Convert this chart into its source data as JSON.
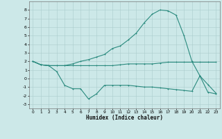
{
  "xlabel": "Humidex (Indice chaleur)",
  "ylabel": "",
  "bg_color": "#cce8e8",
  "grid_color": "#aacccc",
  "line_color": "#2a8a7e",
  "xlim": [
    -0.5,
    23.5
  ],
  "ylim": [
    -3.5,
    9.0
  ],
  "xticks": [
    0,
    1,
    2,
    3,
    4,
    5,
    6,
    7,
    8,
    9,
    10,
    11,
    12,
    13,
    14,
    15,
    16,
    17,
    18,
    19,
    20,
    21,
    22,
    23
  ],
  "yticks": [
    -3,
    -2,
    -1,
    0,
    1,
    2,
    3,
    4,
    5,
    6,
    7,
    8
  ],
  "line1_x": [
    0,
    1,
    2,
    3,
    4,
    5,
    6,
    7,
    8,
    9,
    10,
    11,
    12,
    13,
    14,
    15,
    16,
    17,
    18,
    19,
    20,
    21,
    22,
    23
  ],
  "line1_y": [
    2.0,
    1.6,
    1.5,
    1.5,
    1.5,
    1.7,
    2.0,
    2.2,
    2.5,
    2.8,
    3.5,
    3.8,
    4.5,
    5.3,
    6.5,
    7.5,
    8.0,
    7.9,
    7.4,
    5.0,
    2.0,
    0.3,
    -0.7,
    -1.7
  ],
  "line2_x": [
    0,
    1,
    2,
    3,
    4,
    5,
    6,
    7,
    8,
    9,
    10,
    11,
    12,
    13,
    14,
    15,
    16,
    17,
    18,
    19,
    20,
    21,
    22,
    23
  ],
  "line2_y": [
    2.0,
    1.6,
    1.5,
    1.5,
    1.5,
    1.5,
    1.5,
    1.5,
    1.5,
    1.5,
    1.5,
    1.6,
    1.7,
    1.7,
    1.7,
    1.7,
    1.8,
    1.9,
    1.9,
    1.9,
    1.9,
    1.9,
    1.9,
    1.9
  ],
  "line3_x": [
    0,
    1,
    2,
    3,
    4,
    5,
    6,
    7,
    8,
    9,
    10,
    11,
    12,
    13,
    14,
    15,
    16,
    17,
    18,
    19,
    20,
    21,
    22,
    23
  ],
  "line3_y": [
    2.0,
    1.6,
    1.5,
    0.8,
    -0.8,
    -1.2,
    -1.2,
    -2.4,
    -1.8,
    -0.8,
    -0.8,
    -0.8,
    -0.8,
    -0.9,
    -1.0,
    -1.0,
    -1.1,
    -1.2,
    -1.3,
    -1.4,
    -1.5,
    0.3,
    -1.6,
    -1.8
  ]
}
